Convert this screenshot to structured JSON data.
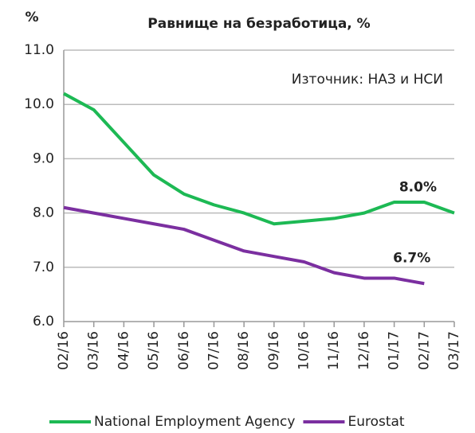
{
  "chart_data": {
    "type": "line",
    "title": "Равнище на безработица, %",
    "y_label": "%",
    "annotation": "Източник: НАЗ и НСИ",
    "categories": [
      "02/16",
      "03/16",
      "04/16",
      "05/16",
      "06/16",
      "07/16",
      "08/16",
      "09/16",
      "10/16",
      "11/16",
      "12/16",
      "01/17",
      "02/17",
      "03/17"
    ],
    "series": [
      {
        "name": "National Employment Agency",
        "color": "#1db954",
        "values": [
          10.2,
          9.9,
          9.3,
          8.7,
          8.35,
          8.15,
          8.0,
          7.8,
          7.85,
          7.9,
          8.0,
          8.2,
          8.2,
          8.0
        ],
        "value_labels": [
          null,
          null,
          null,
          null,
          null,
          null,
          null,
          null,
          null,
          null,
          null,
          null,
          null,
          "8.0%"
        ]
      },
      {
        "name": "Eurostat",
        "color": "#7b2fa0",
        "values": [
          8.1,
          8.0,
          7.9,
          7.8,
          7.7,
          7.5,
          7.3,
          7.2,
          7.1,
          6.9,
          6.8,
          6.8,
          6.7,
          null
        ],
        "value_labels": [
          null,
          null,
          null,
          null,
          null,
          null,
          null,
          null,
          null,
          null,
          null,
          null,
          "6.7%",
          null
        ]
      }
    ],
    "ylim": [
      6.0,
      11.0
    ],
    "yticks": [
      {
        "value": 6,
        "label": "6.0"
      },
      {
        "value": 7,
        "label": "7.0"
      },
      {
        "value": 8,
        "label": "8.0"
      },
      {
        "value": 9,
        "label": "9.0"
      },
      {
        "value": 10,
        "label": "10.0"
      },
      {
        "value": 11,
        "label": "11.0"
      }
    ],
    "grid": true,
    "legend": "bottom"
  }
}
